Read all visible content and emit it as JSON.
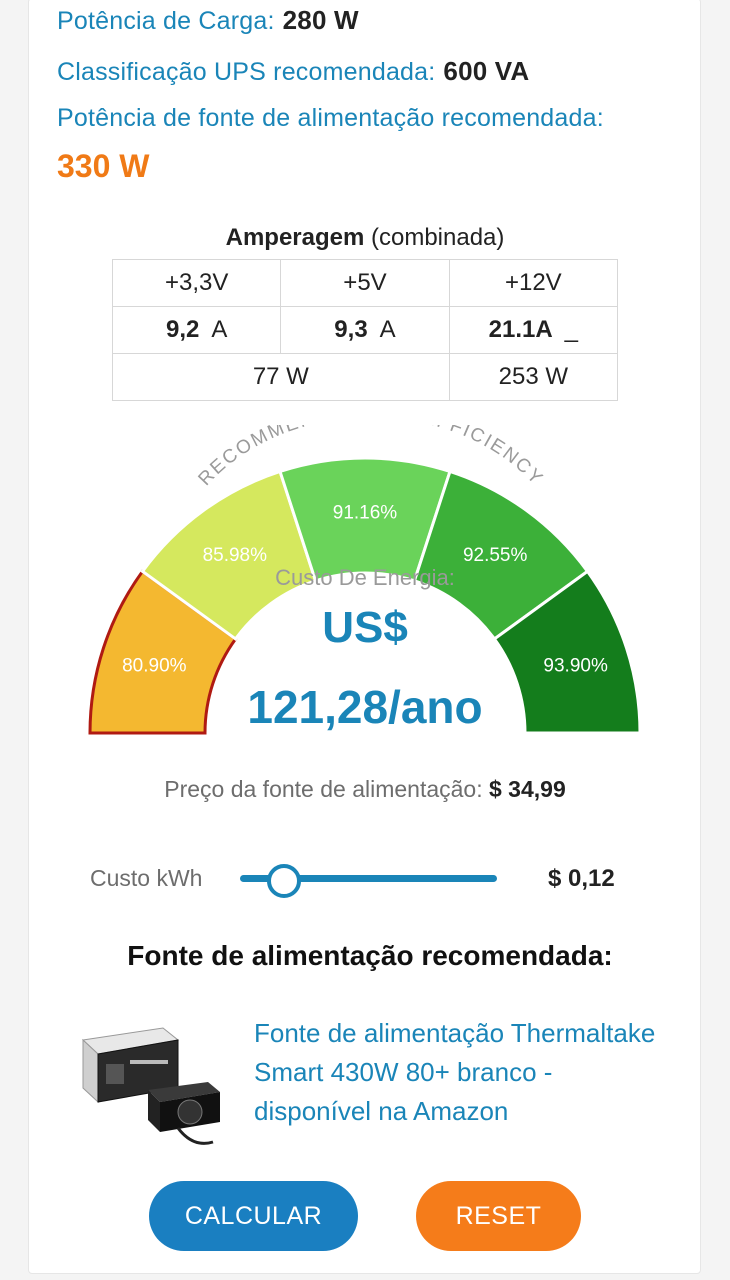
{
  "summary": {
    "load_label": "Potência de Carga:",
    "load_value": "280 W",
    "ups_label": "Classificação UPS recomendada:",
    "ups_value": "600 VA",
    "psu_label": "Potência de fonte de alimentação recomendada:",
    "psu_value": "330 W"
  },
  "amperage": {
    "title_bold": "Amperagem",
    "title_rest": " (combinada)",
    "headers": [
      "+3,3V",
      "+5V",
      "+12V"
    ],
    "amps": [
      {
        "value": "9,2",
        "unit": "A"
      },
      {
        "value": "9,3",
        "unit": "A"
      },
      {
        "value": "21.1A",
        "unit": "_"
      }
    ],
    "watts": [
      "77 W",
      "253 W"
    ]
  },
  "gauge": {
    "arc_title": "RECOMMENDED PSU EFFICIENCY",
    "segments": [
      {
        "label": "80.90%",
        "color": "#f4b830",
        "active": true
      },
      {
        "label": "85.98%",
        "color": "#d5e85e",
        "active": false
      },
      {
        "label": "91.16%",
        "color": "#6ad35a",
        "active": false
      },
      {
        "label": "92.55%",
        "color": "#3cb039",
        "active": false
      },
      {
        "label": "93.90%",
        "color": "#147d1c",
        "active": false
      }
    ],
    "energy_label": "Custo De Energia:",
    "cost_currency": "US$",
    "cost_value": "121,28/ano"
  },
  "price": {
    "label": "Preço da fonte de alimentação:",
    "value": "$ 34,99"
  },
  "kwh": {
    "label": "Custo kWh",
    "value": "$ 0,12",
    "slider_fraction": 0.17
  },
  "recommended": {
    "title": "Fonte de alimentação recomendada:",
    "product_link": "Fonte de alimentação Thermaltake Smart 430W 80+ branco - disponível na Amazon"
  },
  "buttons": {
    "calculate": "CALCULAR",
    "reset": "RESET"
  },
  "colors": {
    "accent_blue": "#1a85b8",
    "accent_orange": "#f07a16"
  }
}
